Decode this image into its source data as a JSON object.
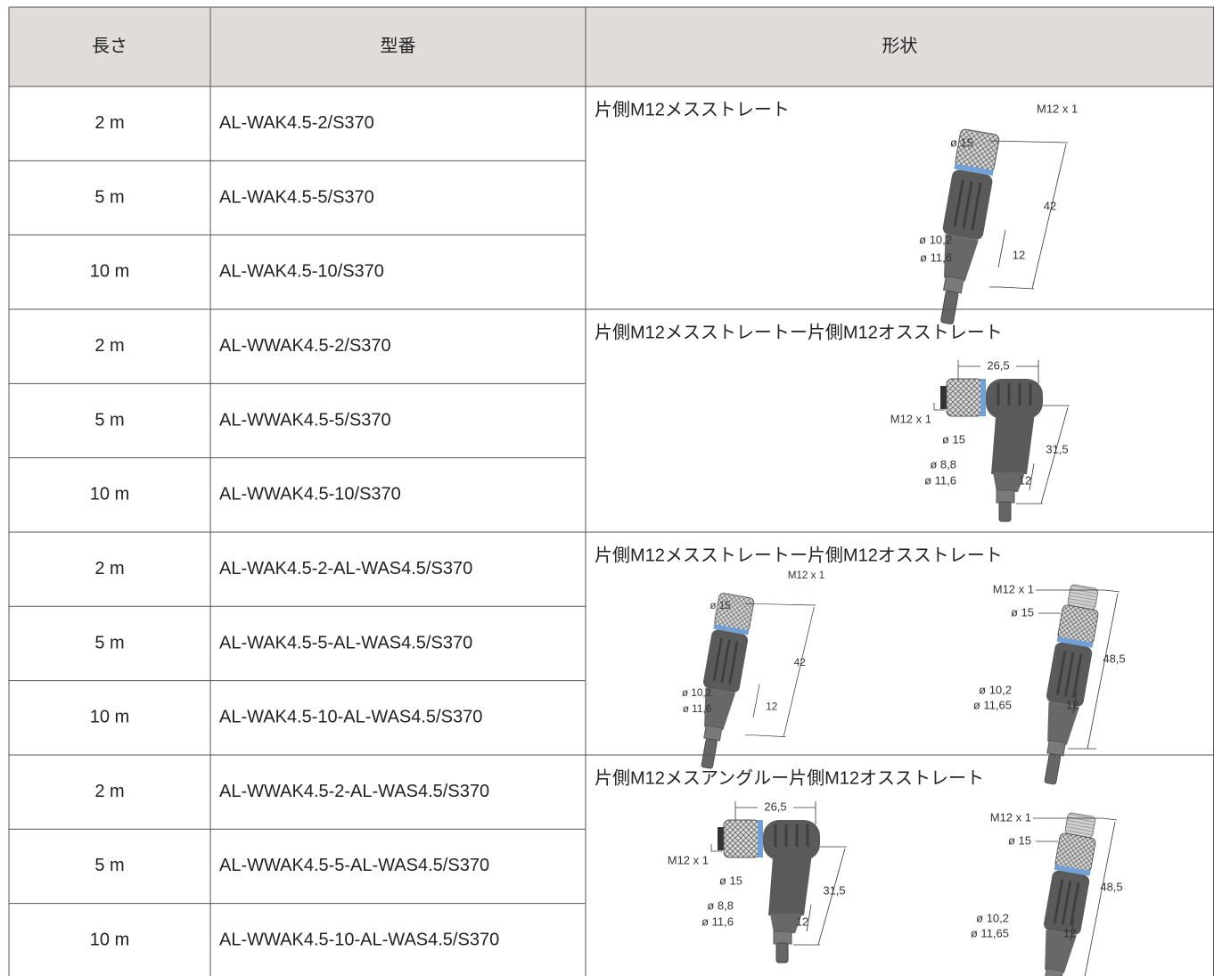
{
  "table": {
    "header": [
      "長さ",
      "型番",
      "形状"
    ],
    "groups": [
      {
        "shape": "片側M12メスストレート",
        "rows": [
          [
            "2 m",
            "AL-WAK4.5-2/S370"
          ],
          [
            "5 m",
            "AL-WAK4.5-5/S370"
          ],
          [
            "10 m",
            "AL-WAK4.5-10/S370"
          ]
        ],
        "drawings": [
          {
            "labels": [
              "M12 x 1",
              "ø 15",
              "42",
              "ø 10,2",
              "ø 11,6",
              "12"
            ]
          }
        ]
      },
      {
        "shape": "片側M12メスストレートー片側M12オスストレート",
        "rows": [
          [
            "2 m",
            "AL-WWAK4.5-2/S370"
          ],
          [
            "5 m",
            "AL-WWAK4.5-5/S370"
          ],
          [
            "10 m",
            "AL-WWAK4.5-10/S370"
          ]
        ],
        "drawings": [
          {
            "labels": [
              "26,5",
              "M12 x 1",
              "ø 15",
              "31,5",
              "ø 8,8",
              "ø 11,6",
              "12"
            ]
          }
        ]
      },
      {
        "shape": "片側M12メスストレートー片側M12オスストレート",
        "rows": [
          [
            "2 m",
            "AL-WAK4.5-2-AL-WAS4.5/S370"
          ],
          [
            "5 m",
            "AL-WAK4.5-5-AL-WAS4.5/S370"
          ],
          [
            "10 m",
            "AL-WAK4.5-10-AL-WAS4.5/S370"
          ]
        ],
        "drawings": [
          {
            "labels": [
              "M12 x 1",
              "ø 15",
              "42",
              "ø 10,2",
              "ø 11,6",
              "12"
            ]
          },
          {
            "labels": [
              "M12 x 1",
              "ø 15",
              "48,5",
              "ø 10,2",
              "ø 11,65",
              "12"
            ]
          }
        ]
      },
      {
        "shape": "片側M12メスアングルー片側M12オスストレート",
        "rows": [
          [
            "2 m",
            "AL-WWAK4.5-2-AL-WAS4.5/S370"
          ],
          [
            "5 m",
            "AL-WWAK4.5-5-AL-WAS4.5/S370"
          ],
          [
            "10 m",
            "AL-WWAK4.5-10-AL-WAS4.5/S370"
          ]
        ],
        "drawings": [
          {
            "labels": [
              "26,5",
              "M12 x 1",
              "ø 15",
              "31,5",
              "ø 8,8",
              "ø 11,6",
              "12"
            ]
          },
          {
            "labels": [
              "M12 x 1",
              "ø 15",
              "48,5",
              "ø 10,2",
              "ø 11,65",
              "12"
            ]
          }
        ]
      }
    ]
  }
}
